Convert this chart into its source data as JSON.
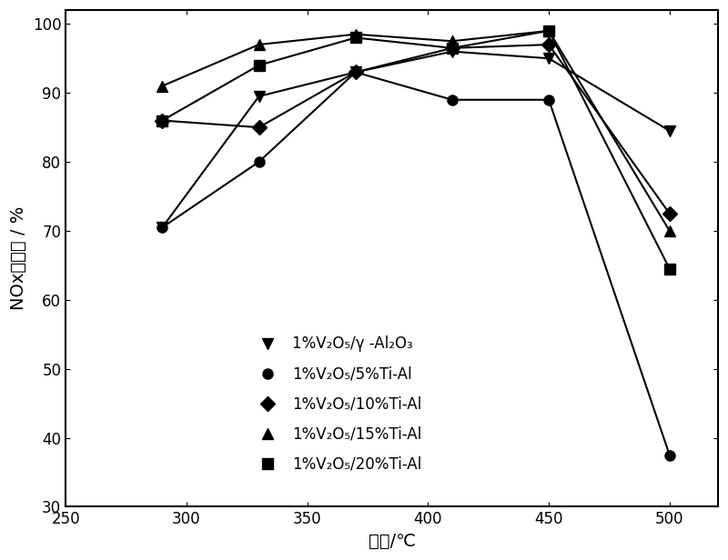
{
  "series": [
    {
      "marker": "v",
      "x": [
        290,
        330,
        370,
        410,
        450,
        500
      ],
      "y": [
        70.5,
        89.5,
        93.0,
        96.0,
        95.0,
        84.5
      ]
    },
    {
      "marker": "o",
      "x": [
        290,
        330,
        370,
        410,
        450,
        500
      ],
      "y": [
        70.5,
        80.0,
        93.0,
        89.0,
        89.0,
        37.5
      ]
    },
    {
      "marker": "D",
      "x": [
        290,
        330,
        370,
        410,
        450,
        500
      ],
      "y": [
        86.0,
        85.0,
        93.0,
        96.5,
        97.0,
        72.5
      ]
    },
    {
      "marker": "^",
      "x": [
        290,
        330,
        370,
        410,
        450,
        500
      ],
      "y": [
        91.0,
        97.0,
        98.5,
        97.5,
        99.0,
        70.0
      ]
    },
    {
      "marker": "s",
      "x": [
        290,
        330,
        370,
        410,
        450,
        500
      ],
      "y": [
        86.0,
        94.0,
        98.0,
        96.5,
        99.0,
        64.5
      ]
    }
  ],
  "legend_texts": [
    "1%V₂O₅/γ -Al₂O₃",
    "1%V₂O₅/5%Ti-Al",
    "1%V₂O₅/10%Ti-Al",
    "1%V₂O₅/15%Ti-Al",
    "1%V₂O₅/20%Ti-Al"
  ],
  "xlabel": "温度/℃",
  "ylabel": "NOx去除率 / %",
  "xlim": [
    250,
    520
  ],
  "ylim": [
    30,
    102
  ],
  "xticks": [
    250,
    300,
    350,
    400,
    450,
    500
  ],
  "yticks": [
    30,
    40,
    50,
    60,
    70,
    80,
    90,
    100
  ],
  "color": "#000000",
  "markersize": 8,
  "linewidth": 1.5,
  "legend_fontsize": 12,
  "axis_fontsize": 14,
  "tick_fontsize": 12
}
